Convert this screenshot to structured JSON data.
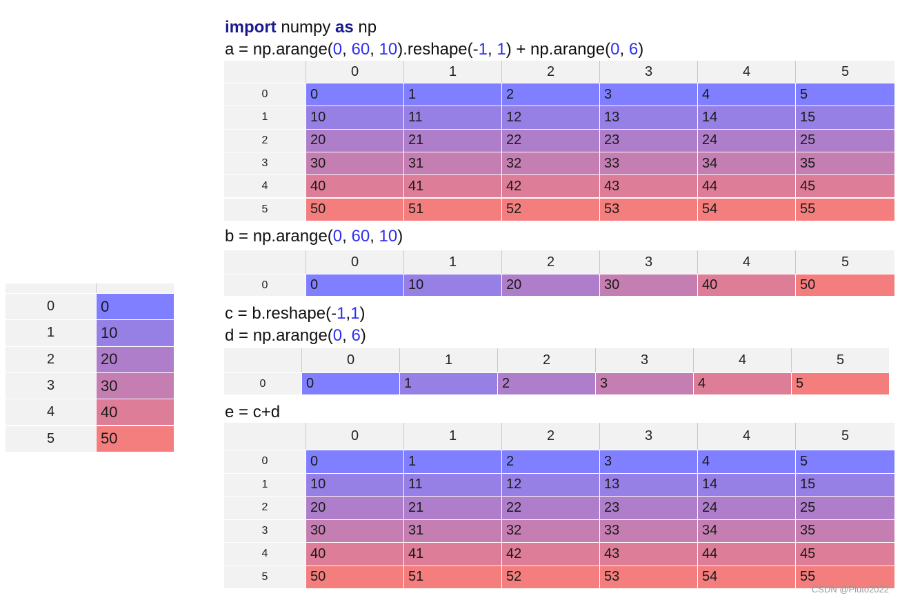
{
  "code": {
    "line1": {
      "kw1": "import",
      "t1": " numpy ",
      "kw2": "as",
      "t2": " np"
    },
    "line_a": {
      "t1": "a = np.arange(",
      "n1": "0",
      "s1": ", ",
      "n2": "60",
      "s2": ", ",
      "n3": "10",
      "t2": ").reshape(-",
      "n4": "1",
      "s3": ", ",
      "n5": "1",
      "t3": ") + np.arange(",
      "n6": "0",
      "s4": ", ",
      "n7": "6",
      "t4": ")"
    },
    "line_b": {
      "t1": "b = np.arange(",
      "n1": "0",
      "s1": ", ",
      "n2": "60",
      "s2": ", ",
      "n3": "10",
      "t2": ")"
    },
    "line_c": {
      "t1": "c = b.reshape(-",
      "n1": "1",
      "s1": ",",
      "n2": "1",
      "t2": ")"
    },
    "line_d": {
      "t1": "d = np.arange(",
      "n1": "0",
      "s1": ", ",
      "n2": "6",
      "t2": ")"
    },
    "line_e": {
      "t1": "e = c+d"
    }
  },
  "tables": {
    "a": {
      "col_headers": [
        "0",
        "1",
        "2",
        "3",
        "4",
        "5"
      ],
      "row_headers": [
        "0",
        "1",
        "2",
        "3",
        "4",
        "5"
      ],
      "rows": [
        [
          "0",
          "1",
          "2",
          "3",
          "4",
          "5"
        ],
        [
          "10",
          "11",
          "12",
          "13",
          "14",
          "15"
        ],
        [
          "20",
          "21",
          "22",
          "23",
          "24",
          "25"
        ],
        [
          "30",
          "31",
          "32",
          "33",
          "34",
          "35"
        ],
        [
          "40",
          "41",
          "42",
          "43",
          "44",
          "45"
        ],
        [
          "50",
          "51",
          "52",
          "53",
          "54",
          "55"
        ]
      ]
    },
    "b": {
      "col_headers": [
        "0",
        "1",
        "2",
        "3",
        "4",
        "5"
      ],
      "row_headers": [
        "0"
      ],
      "rows": [
        [
          "0",
          "10",
          "20",
          "30",
          "40",
          "50"
        ]
      ]
    },
    "d": {
      "col_headers": [
        "0",
        "1",
        "2",
        "3",
        "4",
        "5"
      ],
      "row_headers": [
        "0"
      ],
      "rows": [
        [
          "0",
          "1",
          "2",
          "3",
          "4",
          "5"
        ]
      ]
    },
    "e": {
      "col_headers": [
        "0",
        "1",
        "2",
        "3",
        "4",
        "5"
      ],
      "row_headers": [
        "0",
        "1",
        "2",
        "3",
        "4",
        "5"
      ],
      "rows": [
        [
          "0",
          "1",
          "2",
          "3",
          "4",
          "5"
        ],
        [
          "10",
          "11",
          "12",
          "13",
          "14",
          "15"
        ],
        [
          "20",
          "21",
          "22",
          "23",
          "24",
          "25"
        ],
        [
          "30",
          "31",
          "32",
          "33",
          "34",
          "35"
        ],
        [
          "40",
          "41",
          "42",
          "43",
          "44",
          "45"
        ],
        [
          "50",
          "51",
          "52",
          "53",
          "54",
          "55"
        ]
      ]
    },
    "c": {
      "col_headers": [
        ""
      ],
      "row_headers": [
        "0",
        "1",
        "2",
        "3",
        "4",
        "5"
      ],
      "rows": [
        [
          "0"
        ],
        [
          "10"
        ],
        [
          "20"
        ],
        [
          "30"
        ],
        [
          "40"
        ],
        [
          "50"
        ]
      ]
    }
  },
  "colors": {
    "low": "#7f7fff",
    "high": "#f47d7d",
    "header_bg": "#f2f2f2"
  },
  "watermark": "CSDN @Pluto2022"
}
